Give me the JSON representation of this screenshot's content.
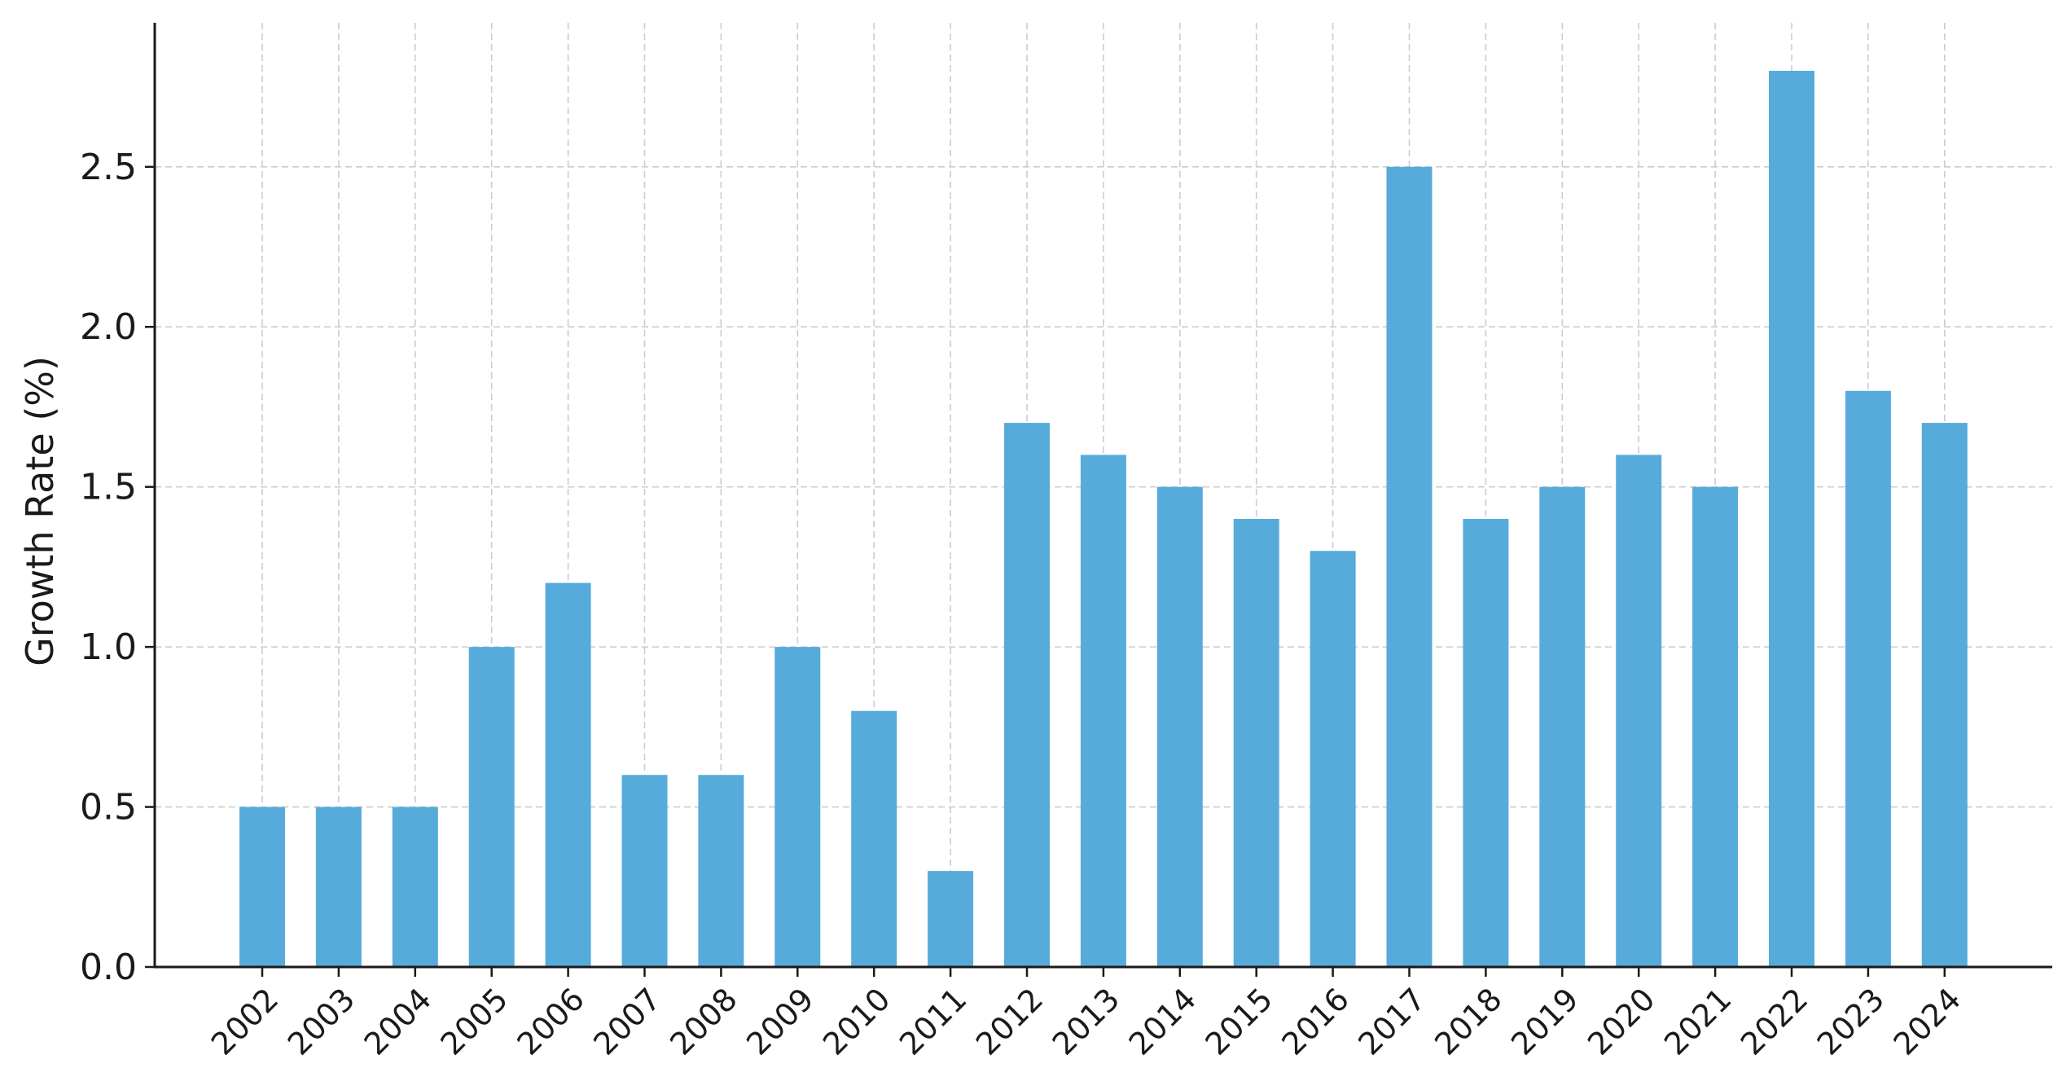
{
  "chart_data": {
    "type": "bar",
    "title": "",
    "xlabel": "",
    "ylabel": "Growth Rate (%)",
    "categories": [
      "2002",
      "2003",
      "2004",
      "2005",
      "2006",
      "2007",
      "2008",
      "2009",
      "2010",
      "2011",
      "2012",
      "2013",
      "2014",
      "2015",
      "2016",
      "2017",
      "2018",
      "2019",
      "2020",
      "2021",
      "2022",
      "2023",
      "2024"
    ],
    "values": [
      0.5,
      0.5,
      0.5,
      1.0,
      1.2,
      0.6,
      0.6,
      1.0,
      0.8,
      0.3,
      1.7,
      1.6,
      1.5,
      1.4,
      1.3,
      2.5,
      1.4,
      1.5,
      1.6,
      1.5,
      2.8,
      1.8,
      1.7
    ],
    "yticks": [
      "0.0",
      "0.5",
      "1.0",
      "1.5",
      "2.0",
      "2.5"
    ],
    "ylim": [
      0,
      2.95
    ],
    "grid": true,
    "bar_color": "#56abdb",
    "xtick_rotation": -45
  }
}
